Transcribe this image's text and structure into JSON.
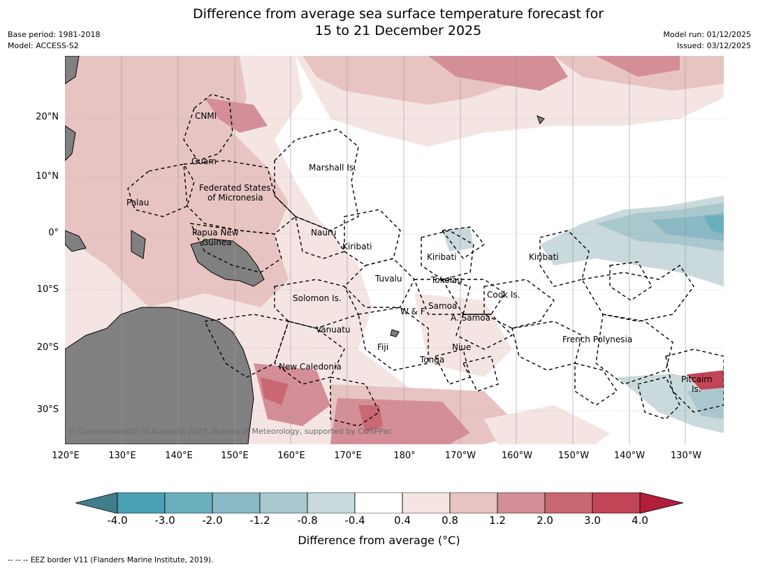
{
  "title_line1": "Difference from average sea surface temperature forecast for",
  "title_line2": "15 to 21 December 2025",
  "meta_left": {
    "base_period": "Base period: 1981-2018",
    "model": "Model: ACCESS-S2"
  },
  "meta_right": {
    "model_run": "Model run: 01/12/2025",
    "issued": "Issued: 03/12/2025"
  },
  "copyright": "© Commonwealth of Australia 2025, Bureau of Meteorology, supported by COSPPac",
  "lat_labels": [
    "20°N",
    "10°N",
    "0°",
    "10°S",
    "20°S",
    "30°S"
  ],
  "lon_labels": [
    "120°E",
    "130°E",
    "140°E",
    "150°E",
    "160°E",
    "170°E",
    "180°",
    "170°W",
    "160°W",
    "150°W",
    "140°W",
    "130°W"
  ],
  "places": {
    "cnmi": "CNMI",
    "guam": "Guam",
    "marshall": "Marshall Is.",
    "fsm1": "Federated States",
    "fsm2": "of Micronesia",
    "palau": "Palau",
    "png1": "Papua New",
    "png2": "Guinea",
    "nauru": "Nauru",
    "kiribati_w": "Kiribati",
    "kiribati_c": "Kiribati",
    "kiribati_e": "Kiribati",
    "tuvalu": "Tuvalu",
    "tokelau": "Tokelau",
    "solomon": "Solomon Is.",
    "samoa": "Samoa",
    "wf": "W & F",
    "asamoa": "A. Samoa",
    "cook": "Cook Is.",
    "vanuatu": "Vanuatu",
    "fiji": "Fiji",
    "niue": "Niue",
    "tonga": "Tonga",
    "french_polynesia": "French Polynesia",
    "new_caledonia": "New Caledonia",
    "pitcairn1": "Pitcairn",
    "pitcairn2": "Is."
  },
  "colorbar": {
    "ticks": [
      "-4.0",
      "-3.0",
      "-2.0",
      "-1.2",
      "-0.8",
      "-0.4",
      "0.4",
      "0.8",
      "1.2",
      "2.0",
      "3.0",
      "4.0"
    ],
    "colors": [
      "#3f7e8a",
      "#4aa0b5",
      "#6aafbd",
      "#8ab8c4",
      "#a9c8cd",
      "#c9d9dc",
      "#ffffff",
      "#f4e5e3",
      "#e7c4c1",
      "#d48e97",
      "#c96872",
      "#c14555",
      "#b11e3c"
    ],
    "label": "Difference from average (°C)"
  },
  "footer": "--  --  -- EEZ border V11 (Flanders Marine Institute, 2019)."
}
